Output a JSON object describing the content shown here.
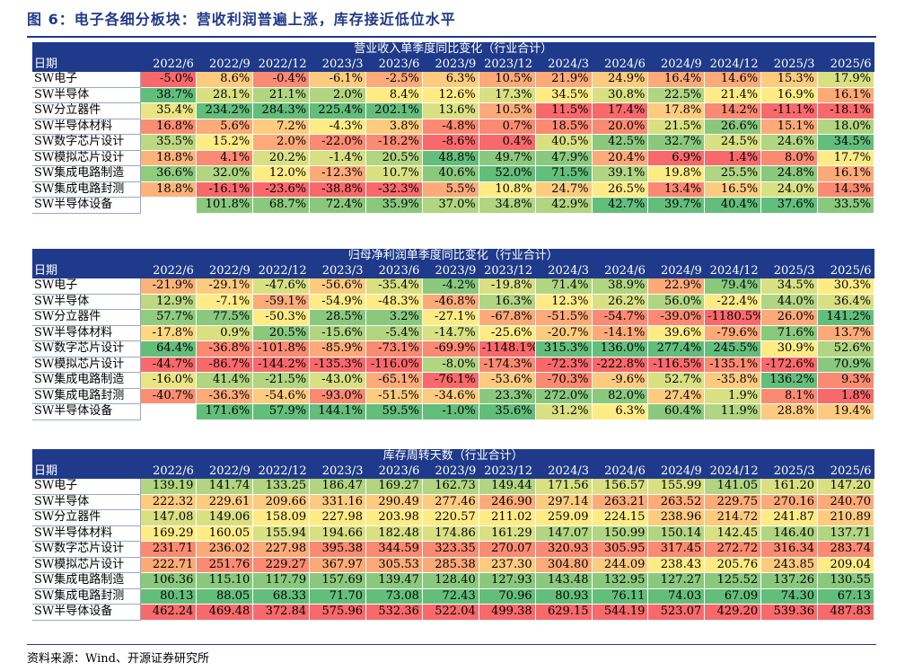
{
  "title": "图 6：电子各细分板块：营收利润普遍上涨，库存接近低位水平",
  "source": "资料来源：Wind、开源证券研究所",
  "header_label": "日期",
  "periods": [
    "2022/6",
    "2022/9",
    "2022/12",
    "2023/3",
    "2023/6",
    "2023/9",
    "2023/12",
    "2024/3",
    "2024/6",
    "2024/9",
    "2024/12",
    "2025/3",
    "2025/6"
  ],
  "row_labels": [
    "SW电子",
    "SW半导体",
    "SW分立器件",
    "SW半导体材料",
    "SW数字芯片设计",
    "SW模拟芯片设计",
    "SW集成电路制造",
    "SW集成电路封测",
    "SW半导体设备"
  ],
  "tables": [
    {
      "title": "营业收入单季度同比变化（行业合计）",
      "rows": [
        [
          "-5.0%",
          "8.6%",
          "-0.4%",
          "-6.1%",
          "-2.5%",
          "6.3%",
          "10.5%",
          "21.9%",
          "24.9%",
          "16.4%",
          "14.6%",
          "15.3%",
          "17.9%"
        ],
        [
          "38.7%",
          "28.1%",
          "21.1%",
          "2.0%",
          "8.4%",
          "12.6%",
          "17.3%",
          "34.5%",
          "30.8%",
          "22.5%",
          "21.4%",
          "16.9%",
          "16.1%"
        ],
        [
          "35.4%",
          "234.2%",
          "284.3%",
          "225.4%",
          "202.1%",
          "13.6%",
          "10.5%",
          "11.5%",
          "17.4%",
          "17.8%",
          "14.2%",
          "-11.1%",
          "-18.1%"
        ],
        [
          "16.8%",
          "5.6%",
          "7.2%",
          "-4.3%",
          "3.8%",
          "-4.8%",
          "0.7%",
          "18.5%",
          "20.0%",
          "21.5%",
          "26.6%",
          "15.1%",
          "18.0%"
        ],
        [
          "35.5%",
          "15.2%",
          "2.0%",
          "-22.0%",
          "-18.2%",
          "-8.6%",
          "0.4%",
          "40.5%",
          "42.5%",
          "32.7%",
          "24.5%",
          "24.6%",
          "34.5%"
        ],
        [
          "18.8%",
          "4.1%",
          "20.2%",
          "-1.4%",
          "20.5%",
          "48.8%",
          "49.7%",
          "47.9%",
          "20.4%",
          "6.9%",
          "1.4%",
          "8.0%",
          "17.7%"
        ],
        [
          "36.6%",
          "32.0%",
          "12.0%",
          "-12.3%",
          "10.7%",
          "40.6%",
          "52.0%",
          "71.5%",
          "39.1%",
          "19.8%",
          "25.5%",
          "24.8%",
          "16.1%"
        ],
        [
          "18.8%",
          "-16.1%",
          "-23.6%",
          "-38.8%",
          "-32.3%",
          "5.5%",
          "10.8%",
          "24.7%",
          "26.5%",
          "13.4%",
          "16.5%",
          "24.0%",
          "14.3%"
        ],
        [
          "",
          "101.8%",
          "68.7%",
          "72.4%",
          "35.9%",
          "37.0%",
          "34.8%",
          "42.9%",
          "42.7%",
          "39.7%",
          "40.4%",
          "37.6%",
          "33.5%"
        ]
      ]
    },
    {
      "title": "归母净利润单季度同比变化（行业合计）",
      "rows": [
        [
          "-21.9%",
          "-29.1%",
          "-47.6%",
          "-56.6%",
          "-35.4%",
          "-4.2%",
          "-19.8%",
          "71.4%",
          "38.9%",
          "22.9%",
          "79.4%",
          "34.5%",
          "30.3%"
        ],
        [
          "12.9%",
          "-7.1%",
          "-59.1%",
          "-54.9%",
          "-48.3%",
          "-46.8%",
          "16.3%",
          "12.3%",
          "26.2%",
          "56.0%",
          "-22.4%",
          "44.0%",
          "36.4%"
        ],
        [
          "57.7%",
          "77.5%",
          "-50.3%",
          "28.5%",
          "3.2%",
          "-27.1%",
          "-67.8%",
          "-51.5%",
          "-54.7%",
          "-39.0%",
          "-1180.5%",
          "26.0%",
          "141.2%"
        ],
        [
          "-17.8%",
          "0.9%",
          "20.5%",
          "-15.6%",
          "-5.4%",
          "-14.7%",
          "-25.6%",
          "-20.7%",
          "-14.1%",
          "39.6%",
          "-79.6%",
          "71.6%",
          "13.7%"
        ],
        [
          "64.4%",
          "-36.8%",
          "-101.8%",
          "-85.9%",
          "-73.1%",
          "-69.9%",
          "-1148.1%",
          "315.3%",
          "136.0%",
          "277.4%",
          "245.5%",
          "30.9%",
          "52.6%"
        ],
        [
          "-44.7%",
          "-86.7%",
          "-144.2%",
          "-135.3%",
          "-116.0%",
          "-8.0%",
          "-174.3%",
          "-72.3%",
          "-222.8%",
          "-116.5%",
          "-135.1%",
          "-172.6%",
          "70.9%"
        ],
        [
          "-16.0%",
          "41.4%",
          "-21.5%",
          "-43.0%",
          "-65.1%",
          "-76.1%",
          "-53.6%",
          "-70.3%",
          "-9.6%",
          "52.7%",
          "-35.8%",
          "136.2%",
          "9.3%"
        ],
        [
          "-40.7%",
          "-36.3%",
          "-54.6%",
          "-93.0%",
          "-51.5%",
          "-34.6%",
          "23.3%",
          "272.0%",
          "82.0%",
          "27.4%",
          "1.9%",
          "8.1%",
          "1.8%"
        ],
        [
          "",
          "171.6%",
          "57.9%",
          "144.1%",
          "59.5%",
          "-1.0%",
          "35.6%",
          "31.2%",
          "6.3%",
          "60.4%",
          "11.9%",
          "28.8%",
          "19.4%"
        ]
      ]
    },
    {
      "title": "库存周转天数（行业合计）",
      "rows": [
        [
          "139.19",
          "141.74",
          "133.25",
          "186.47",
          "169.27",
          "162.73",
          "149.44",
          "171.56",
          "156.57",
          "155.99",
          "141.05",
          "161.20",
          "147.20"
        ],
        [
          "222.32",
          "229.61",
          "209.66",
          "331.16",
          "290.49",
          "277.46",
          "246.90",
          "297.14",
          "263.21",
          "263.52",
          "229.75",
          "270.16",
          "240.70"
        ],
        [
          "147.08",
          "149.06",
          "158.09",
          "227.98",
          "203.98",
          "220.57",
          "211.02",
          "259.09",
          "224.15",
          "238.96",
          "214.72",
          "241.87",
          "210.89"
        ],
        [
          "169.29",
          "160.05",
          "155.94",
          "194.66",
          "182.48",
          "174.86",
          "161.29",
          "147.07",
          "150.99",
          "150.14",
          "142.45",
          "146.40",
          "137.71"
        ],
        [
          "231.71",
          "236.02",
          "227.98",
          "395.38",
          "344.59",
          "323.35",
          "270.07",
          "320.93",
          "305.95",
          "317.45",
          "272.72",
          "316.34",
          "283.74"
        ],
        [
          "222.71",
          "251.76",
          "229.27",
          "367.97",
          "305.53",
          "285.38",
          "237.30",
          "304.80",
          "244.09",
          "238.43",
          "205.76",
          "243.85",
          "209.04"
        ],
        [
          "106.36",
          "115.10",
          "117.79",
          "157.69",
          "139.47",
          "128.40",
          "127.93",
          "143.48",
          "132.95",
          "127.27",
          "125.52",
          "137.26",
          "130.55"
        ],
        [
          "80.13",
          "88.05",
          "68.33",
          "71.70",
          "73.08",
          "72.43",
          "70.96",
          "80.93",
          "76.11",
          "74.03",
          "67.09",
          "74.30",
          "67.13"
        ],
        [
          "462.24",
          "469.48",
          "372.84",
          "575.96",
          "532.36",
          "522.04",
          "499.38",
          "629.15",
          "544.19",
          "523.07",
          "429.20",
          "539.36",
          "487.83"
        ]
      ]
    }
  ],
  "colors": {
    "header_bg": "#1f3a8a",
    "scale_low": "#63be7b",
    "scale_mid": "#ffeb84",
    "scale_high": "#f8696b",
    "inventory_scale": "high values red, low values green"
  }
}
